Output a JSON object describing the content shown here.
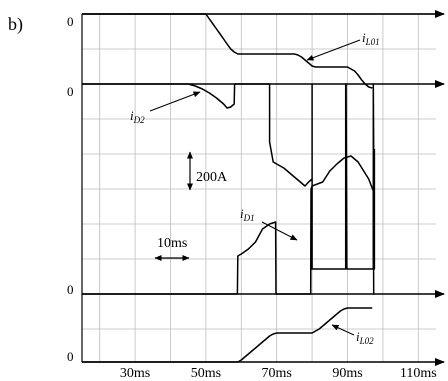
{
  "panel_label": "b)",
  "scale_label": "200A",
  "time_scale_label": "10ms",
  "chart_data": {
    "type": "line",
    "xlabel": "",
    "ylabel": "",
    "xlim": [
      15,
      115
    ],
    "x_ticks": [
      "30ms",
      "50ms",
      "70ms",
      "90ms",
      "110ms"
    ],
    "x_tick_values": [
      30,
      50,
      70,
      90,
      110
    ],
    "grid": true,
    "series": [
      {
        "name_main": "i",
        "name_sub": "L01",
        "baseline_label": "0",
        "x": [
          15,
          50,
          51,
          52,
          53,
          54,
          55,
          56,
          57,
          58,
          59,
          60,
          70,
          75,
          76,
          77,
          78,
          79,
          80,
          81,
          90,
          91,
          92,
          93,
          94,
          95,
          96,
          97
        ],
        "y": [
          0,
          0,
          -5,
          -10,
          -15,
          -20,
          -25,
          -30,
          -35,
          -38,
          -40,
          -40,
          -40,
          -40,
          -41,
          -43,
          -46,
          -49,
          -52,
          -53,
          -53,
          -55,
          -57,
          -61,
          -66,
          -70,
          -73,
          -74
        ]
      },
      {
        "name_main": "i",
        "name_sub": "D2",
        "baseline_label": "0",
        "x": [
          15,
          45,
          47,
          49,
          51,
          53,
          55,
          56,
          57,
          58,
          58.1,
          59,
          68,
          68,
          69,
          70,
          72,
          75,
          77,
          78,
          79,
          80,
          80,
          80,
          80,
          89.5,
          89.5,
          89.6,
          89.7,
          89.8,
          90,
          90.1,
          90.2,
          90.3,
          91,
          91.5,
          94,
          95,
          96,
          97,
          97.3,
          97.3,
          97.6,
          97.6
        ],
        "y": [
          0,
          0,
          -2,
          -5,
          -9,
          -14,
          -20,
          -24,
          -23,
          -20,
          0,
          0,
          0,
          -58,
          -78,
          -80,
          -84,
          -93,
          -99,
          -102,
          -98,
          -95,
          0,
          -95,
          -185,
          -185,
          0,
          0,
          -90,
          -185,
          -185,
          -185,
          -185,
          -185,
          -185,
          -185,
          -185,
          -185,
          -185,
          -185,
          -185,
          0,
          -185,
          -65
        ]
      },
      {
        "name_main": "i",
        "name_sub": "D1",
        "baseline_label": "0",
        "x": [
          15,
          58.9,
          59,
          60,
          62,
          64,
          66,
          68,
          69.7,
          69.8,
          79.6,
          79.7,
          80,
          83,
          85,
          87,
          89,
          91,
          93,
          96,
          97.3,
          97.4,
          97.6
        ],
        "y": [
          0,
          0,
          38,
          40,
          45,
          52,
          65,
          70,
          72,
          0,
          0,
          105,
          108,
          112,
          123,
          130,
          136,
          138,
          132,
          115,
          103,
          0,
          0
        ]
      },
      {
        "name_main": "i",
        "name_sub": "L02",
        "baseline_label": "0",
        "x": [
          15,
          59,
          60,
          61,
          62,
          63,
          64,
          65,
          66,
          67,
          68,
          69,
          70,
          80,
          81,
          82,
          83,
          84,
          85,
          86,
          87,
          88,
          89,
          90,
          97
        ],
        "y": [
          0,
          0,
          2,
          5,
          8,
          11,
          14,
          17,
          20,
          23,
          26,
          28,
          29,
          29,
          31,
          33,
          36,
          39,
          42,
          45,
          48,
          51,
          53,
          54,
          54
        ]
      }
    ]
  }
}
